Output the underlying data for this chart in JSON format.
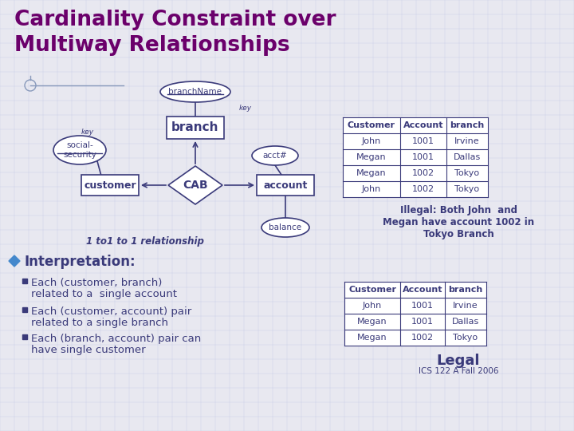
{
  "title_line1": "Cardinality Constraint over",
  "title_line2": "Multiway Relationships",
  "title_color": "#6B006B",
  "bg_color": "#E8E8F0",
  "diagram_color": "#3a3a7a",
  "table1_headers": [
    "Customer",
    "Account",
    "branch"
  ],
  "table1_rows": [
    [
      "John",
      "1001",
      "Irvine"
    ],
    [
      "Megan",
      "1001",
      "Dallas"
    ],
    [
      "Megan",
      "1002",
      "Tokyo"
    ],
    [
      "John",
      "1002",
      "Tokyo"
    ]
  ],
  "table2_headers": [
    "Customer",
    "Account",
    "branch"
  ],
  "table2_rows": [
    [
      "John",
      "1001",
      "Irvine"
    ],
    [
      "Megan",
      "1001",
      "Dallas"
    ],
    [
      "Megan",
      "1002",
      "Tokyo"
    ]
  ],
  "illegal_text": "Illegal: Both John  and\nMegan have account 1002 in\nTokyo Branch",
  "legal_text": "Legal",
  "legal_subtext": "ICS 122 A Fall 2006",
  "interp_title": "Interpretation:",
  "bullet1_line1": "Each (customer, branch)",
  "bullet1_line2": "related to a  single account",
  "bullet2_line1": "Each (customer, account) pair",
  "bullet2_line2": "related to a single branch",
  "bullet3_line1": "Each (branch, account) pair can",
  "bullet3_line2": "have single customer",
  "one_to_one": "1 to1 to 1 relationship",
  "node_branch": "branch",
  "node_customer": "customer",
  "node_account": "account",
  "node_cab": "CAB",
  "attr_branchName": "branchName",
  "attr_acct": "acct#",
  "attr_balance": "balance",
  "attr_social": "social-\nsecurity",
  "key_label": "key",
  "key_label2": "key"
}
